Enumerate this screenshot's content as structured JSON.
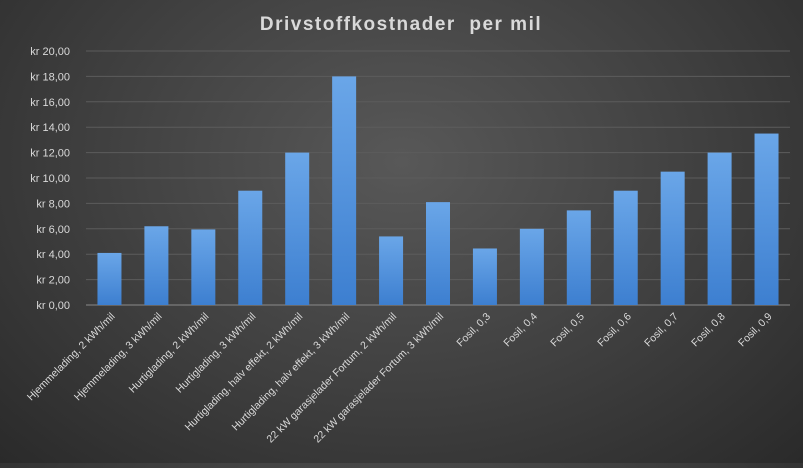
{
  "chart_data": {
    "type": "bar",
    "title": "Drivstoffkostnader  per mil",
    "xlabel": "",
    "ylabel": "",
    "ylim": [
      0,
      20
    ],
    "ytick_step": 2,
    "ytick_labels": [
      "kr  0,00",
      "kr  2,00",
      "kr  4,00",
      "kr  6,00",
      "kr  8,00",
      "kr  10,00",
      "kr  12,00",
      "kr  14,00",
      "kr  16,00",
      "kr  18,00",
      "kr  20,00"
    ],
    "grid": true,
    "legend": "none",
    "categories": [
      "Hjemmelading, 2 kWh/mil",
      "Hjemmelading, 3 kWh/mil",
      "Hurtiglading, 2 kWh/mil",
      "Hurtiglading, 3 kWh/mil",
      "Hurtiglading, halv effekt, 2 kWh/mil",
      "Hurtiglading, halv effekt, 3 kWh/mil",
      "22 kW garasjelader Fortum, 2 kWh/mil",
      "22 kW garasjelader Fortum, 3 kWh/mil",
      "Fosil, 0,3",
      "Fosil, 0,4",
      "Fosil, 0,5",
      "Fosil, 0,6",
      "Fosil, 0,7",
      "Fosil, 0,8",
      "Fosil, 0,9"
    ],
    "values": [
      4.1,
      6.2,
      5.95,
      9.0,
      12.0,
      18.0,
      5.4,
      8.1,
      4.45,
      6.0,
      7.45,
      9.0,
      10.5,
      12.0,
      13.5
    ],
    "colors": {
      "bar_top": "#6aa6e8",
      "bar_bottom": "#3d7fd0",
      "text": "#d9d9d9",
      "grid": "#5c5c5c"
    }
  }
}
